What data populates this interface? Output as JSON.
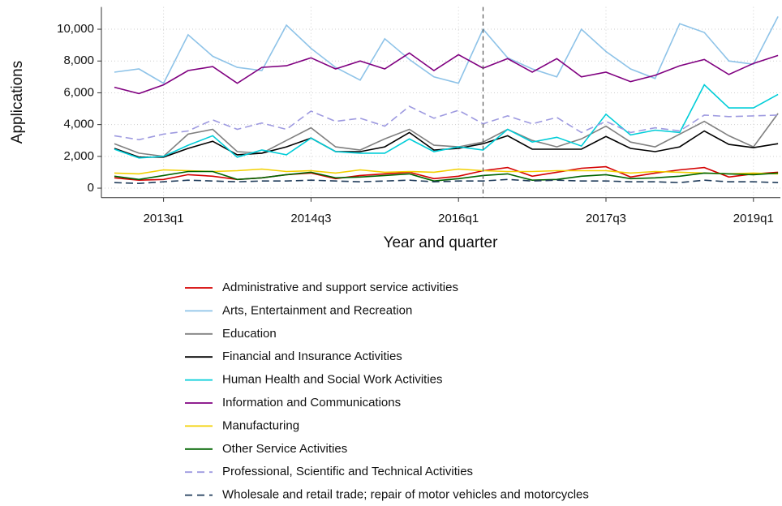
{
  "chart_data": {
    "type": "line",
    "x_label": "Year and quarter",
    "y_label": "Applications",
    "categories": [
      null,
      null,
      "2013q1",
      null,
      null,
      null,
      null,
      null,
      "2014q3",
      null,
      null,
      null,
      null,
      null,
      "2016q1",
      null,
      null,
      null,
      null,
      null,
      "2017q3",
      null,
      null,
      null,
      null,
      null,
      "2019q1",
      null
    ],
    "ylim": [
      -600,
      11400
    ],
    "yticks": [
      0,
      {
        "value": 2000,
        "label": "2,000"
      },
      {
        "value": 4000,
        "label": "4,000"
      },
      {
        "value": 6000,
        "label": "6,000"
      },
      {
        "value": 8000,
        "label": "8,000"
      },
      {
        "value": 10000,
        "label": "10,000"
      }
    ],
    "grid": true,
    "reference_line": {
      "index": 15,
      "dashed": true
    },
    "series": [
      {
        "name": "Administrative and support service activities",
        "color": "#d40000",
        "dashed": false,
        "values": [
          650,
          500,
          550,
          850,
          750,
          550,
          650,
          850,
          950,
          600,
          800,
          900,
          1000,
          600,
          750,
          1100,
          1300,
          750,
          1000,
          1250,
          1350,
          700,
          950,
          1150,
          1300,
          700,
          900,
          1000
        ]
      },
      {
        "name": "Arts, Entertainment and Recreation",
        "color": "#8ec3e8",
        "dashed": false,
        "values": [
          7300,
          7500,
          6600,
          9650,
          8300,
          7600,
          7400,
          10250,
          8800,
          7600,
          6800,
          9400,
          8100,
          7000,
          6600,
          10000,
          8200,
          7500,
          7000,
          10000,
          8600,
          7500,
          6900,
          10350,
          9800,
          8000,
          7800,
          10800
        ]
      },
      {
        "name": "Education",
        "color": "#808080",
        "dashed": false,
        "values": [
          2800,
          2200,
          2000,
          3400,
          3700,
          2300,
          2200,
          3000,
          3800,
          2600,
          2400,
          3100,
          3700,
          2700,
          2600,
          2900,
          3700,
          3000,
          2600,
          3100,
          3900,
          2900,
          2600,
          3400,
          4200,
          3300,
          2600,
          4700
        ]
      },
      {
        "name": "Financial and Insurance Activities",
        "color": "#000000",
        "dashed": false,
        "values": [
          2500,
          1950,
          1950,
          2500,
          2950,
          2100,
          2200,
          2600,
          3150,
          2300,
          2300,
          2600,
          3500,
          2400,
          2500,
          2800,
          3300,
          2450,
          2450,
          2450,
          3250,
          2500,
          2300,
          2600,
          3600,
          2750,
          2550,
          2800
        ]
      },
      {
        "name": "Human Health and Social Work Activities",
        "color": "#00cdd8",
        "dashed": false,
        "values": [
          2450,
          1900,
          2000,
          2700,
          3300,
          1950,
          2400,
          2100,
          3150,
          2300,
          2200,
          2200,
          3100,
          2300,
          2600,
          2400,
          3700,
          2900,
          3200,
          2650,
          4650,
          3350,
          3650,
          3500,
          6500,
          5050,
          5050,
          5900
        ]
      },
      {
        "name": "Information and Communications",
        "color": "#800080",
        "dashed": false,
        "values": [
          6350,
          5950,
          6500,
          7400,
          7650,
          6600,
          7600,
          7700,
          8200,
          7500,
          8000,
          7500,
          8500,
          7400,
          8400,
          7550,
          8150,
          7300,
          8150,
          7000,
          7300,
          6700,
          7100,
          7700,
          8100,
          7150,
          7850,
          8350
        ]
      },
      {
        "name": "Manufacturing",
        "color": "#f2d000",
        "dashed": false,
        "values": [
          950,
          900,
          1150,
          1100,
          1050,
          1100,
          1200,
          1050,
          1100,
          950,
          1150,
          1000,
          1050,
          1000,
          1200,
          1100,
          1050,
          1050,
          1100,
          1100,
          1100,
          950,
          1050,
          1000,
          950,
          900,
          950,
          900
        ]
      },
      {
        "name": "Other Service Activities",
        "color": "#006400",
        "dashed": false,
        "values": [
          750,
          550,
          800,
          1050,
          1050,
          550,
          650,
          850,
          1000,
          650,
          700,
          800,
          900,
          450,
          600,
          800,
          900,
          500,
          550,
          750,
          850,
          600,
          650,
          750,
          950,
          900,
          850,
          950
        ]
      },
      {
        "name": "Professional, Scientific and Technical Activities",
        "color": "#9e9ae0",
        "dashed": true,
        "values": [
          3300,
          3050,
          3400,
          3600,
          4300,
          3700,
          4100,
          3700,
          4850,
          4200,
          4400,
          3900,
          5150,
          4400,
          4900,
          4050,
          4550,
          4050,
          4450,
          3500,
          4200,
          3500,
          3800,
          3600,
          4600,
          4500,
          4550,
          4600
        ]
      },
      {
        "name": "Wholesale and retail trade; repair of motor vehicles and motorcycles",
        "color": "#1f3b5a",
        "dashed": true,
        "values": [
          350,
          300,
          400,
          500,
          450,
          400,
          450,
          450,
          500,
          450,
          400,
          450,
          500,
          400,
          450,
          450,
          550,
          450,
          500,
          450,
          450,
          400,
          400,
          350,
          500,
          400,
          400,
          350
        ]
      }
    ]
  }
}
